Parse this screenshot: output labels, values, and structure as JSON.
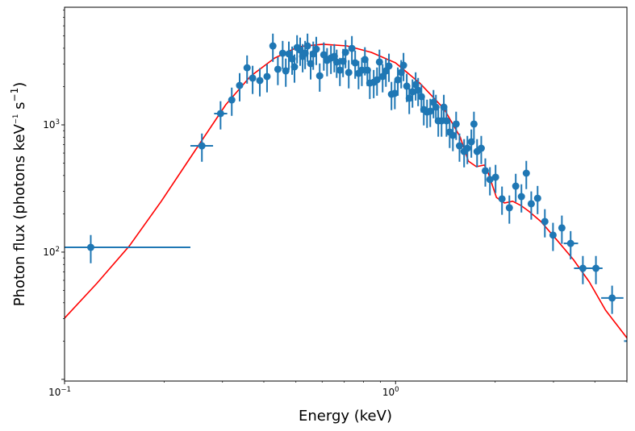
{
  "chart_data": {
    "type": "scatter",
    "xscale": "log",
    "yscale": "log",
    "xlabel": "Energy (keV)",
    "ylabel_main": "Photon flux (photons keV",
    "ylabel_sup1": "−1",
    "ylabel_mid": " s",
    "ylabel_sup2": "−1",
    "ylabel_end": ")",
    "xlim": [
      0.1,
      5.0
    ],
    "ylim": [
      9.7,
      8400
    ],
    "x_ticks": [
      {
        "value": 0.1,
        "base": "10",
        "exp": "−1"
      },
      {
        "value": 1.0,
        "base": "10",
        "exp": "0"
      }
    ],
    "y_ticks": [
      {
        "value": 100,
        "base": "10",
        "exp": "2"
      },
      {
        "value": 1000,
        "base": "10",
        "exp": "3"
      }
    ],
    "colors": {
      "data": "#1f77b4",
      "model": "#ff0000"
    },
    "yerr_frac": 0.25,
    "series": [
      {
        "name": "data",
        "points": [
          [
            0.12,
            109
          ],
          [
            0.26,
            684
          ],
          [
            0.296,
            1227
          ],
          [
            0.32,
            1570
          ],
          [
            0.338,
            2040
          ],
          [
            0.356,
            2810
          ],
          [
            0.37,
            2330
          ],
          [
            0.389,
            2230
          ],
          [
            0.409,
            2400
          ],
          [
            0.426,
            4170
          ],
          [
            0.441,
            2735
          ],
          [
            0.456,
            3655
          ],
          [
            0.466,
            2655
          ],
          [
            0.476,
            3610
          ],
          [
            0.487,
            3300
          ],
          [
            0.495,
            2860
          ],
          [
            0.504,
            4050
          ],
          [
            0.515,
            3880
          ],
          [
            0.524,
            3450
          ],
          [
            0.533,
            3655
          ],
          [
            0.542,
            4170
          ],
          [
            0.554,
            3030
          ],
          [
            0.564,
            3610
          ],
          [
            0.576,
            3935
          ],
          [
            0.59,
            2430
          ],
          [
            0.607,
            3555
          ],
          [
            0.621,
            3210
          ],
          [
            0.638,
            3350
          ],
          [
            0.653,
            3450
          ],
          [
            0.664,
            3120
          ],
          [
            0.679,
            2690
          ],
          [
            0.694,
            3160
          ],
          [
            0.706,
            3715
          ],
          [
            0.722,
            2580
          ],
          [
            0.738,
            3990
          ],
          [
            0.755,
            3070
          ],
          [
            0.773,
            2540
          ],
          [
            0.791,
            2690
          ],
          [
            0.808,
            3260
          ],
          [
            0.822,
            2690
          ],
          [
            0.836,
            2130
          ],
          [
            0.859,
            2160
          ],
          [
            0.879,
            2260
          ],
          [
            0.894,
            3120
          ],
          [
            0.914,
            2400
          ],
          [
            0.935,
            2655
          ],
          [
            0.955,
            2900
          ],
          [
            0.972,
            1740
          ],
          [
            0.995,
            1770
          ],
          [
            1.016,
            2260
          ],
          [
            1.04,
            2580
          ],
          [
            1.057,
            2940
          ],
          [
            1.081,
            2015
          ],
          [
            1.1,
            1620
          ],
          [
            1.125,
            1820
          ],
          [
            1.15,
            2070
          ],
          [
            1.17,
            1870
          ],
          [
            1.197,
            1667
          ],
          [
            1.217,
            1320
          ],
          [
            1.245,
            1262
          ],
          [
            1.273,
            1282
          ],
          [
            1.302,
            1503
          ],
          [
            1.324,
            1378
          ],
          [
            1.346,
            1076
          ],
          [
            1.377,
            1076
          ],
          [
            1.399,
            1378
          ],
          [
            1.425,
            1076
          ],
          [
            1.457,
            877
          ],
          [
            1.49,
            828
          ],
          [
            1.524,
            1015
          ],
          [
            1.56,
            684
          ],
          [
            1.611,
            618
          ],
          [
            1.648,
            655
          ],
          [
            1.694,
            736
          ],
          [
            1.725,
            1015
          ],
          [
            1.763,
            618
          ],
          [
            1.815,
            655
          ],
          [
            1.867,
            436
          ],
          [
            1.928,
            372
          ],
          [
            2.005,
            388
          ],
          [
            2.097,
            262
          ],
          [
            2.207,
            223
          ],
          [
            2.307,
            330
          ],
          [
            2.4,
            273
          ],
          [
            2.483,
            417
          ],
          [
            2.57,
            240
          ],
          [
            2.686,
            265
          ],
          [
            2.825,
            174
          ],
          [
            2.99,
            136
          ],
          [
            3.18,
            155
          ],
          [
            3.38,
            117
          ],
          [
            3.68,
            74.6
          ],
          [
            4.03,
            74.6
          ],
          [
            4.51,
            43.6
          ],
          [
            5.15,
            20
          ]
        ],
        "xerr_ranges": [
          {
            "i": 0,
            "lo": 0.1,
            "hi": 0.24
          },
          {
            "i": 1,
            "lo": 0.24,
            "hi": 0.281
          },
          {
            "i": 2,
            "lo": 0.283,
            "hi": 0.31
          },
          {
            "i": 90,
            "lo": 3.22,
            "hi": 3.56
          },
          {
            "i": 91,
            "lo": 3.46,
            "hi": 3.92
          },
          {
            "i": 92,
            "lo": 3.86,
            "hi": 4.22
          },
          {
            "i": 93,
            "lo": 4.18,
            "hi": 4.88
          },
          {
            "i": 94,
            "lo": 4.9,
            "hi": 5.4
          }
        ]
      },
      {
        "name": "model",
        "points": [
          [
            0.1,
            30.3
          ],
          [
            0.125,
            56.6
          ],
          [
            0.157,
            112
          ],
          [
            0.196,
            251
          ],
          [
            0.245,
            600
          ],
          [
            0.307,
            1440
          ],
          [
            0.364,
            2400
          ],
          [
            0.431,
            3350
          ],
          [
            0.509,
            4110
          ],
          [
            0.603,
            4300
          ],
          [
            0.714,
            4170
          ],
          [
            0.845,
            3715
          ],
          [
            1.0,
            3070
          ],
          [
            1.183,
            2130
          ],
          [
            1.4,
            1340
          ],
          [
            1.567,
            804
          ],
          [
            1.66,
            519
          ],
          [
            1.754,
            469
          ],
          [
            1.855,
            483
          ],
          [
            1.906,
            417
          ],
          [
            2.018,
            269
          ],
          [
            2.134,
            243
          ],
          [
            2.258,
            251
          ],
          [
            2.388,
            233
          ],
          [
            2.525,
            210
          ],
          [
            2.748,
            174
          ],
          [
            3.076,
            124
          ],
          [
            3.443,
            87.7
          ],
          [
            3.85,
            58.3
          ],
          [
            4.31,
            35
          ],
          [
            5.01,
            21
          ]
        ]
      }
    ]
  }
}
